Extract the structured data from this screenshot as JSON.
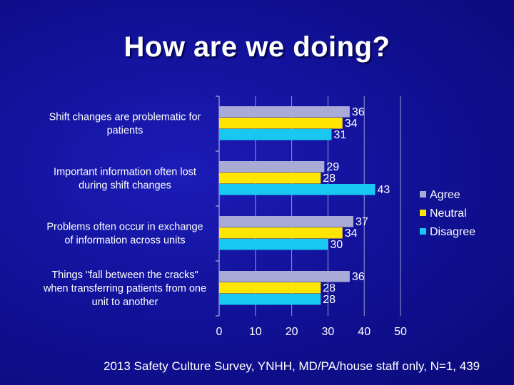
{
  "slide": {
    "title": "How are we doing?",
    "footnote": "2013 Safety Culture Survey, YNHH, MD/PA/house staff only, N=1, 439"
  },
  "chart_data": {
    "type": "bar",
    "orientation": "horizontal",
    "categories": [
      [
        "Shift changes are problematic for",
        "patients"
      ],
      [
        "Important information often lost",
        "during shift changes"
      ],
      [
        "Problems often occur in exchange",
        "of information across units"
      ],
      [
        "Things \"fall between the cracks\"",
        "when transferring patients from one",
        "unit to another"
      ]
    ],
    "series": [
      {
        "name": "Agree",
        "color": "#aaaad6",
        "values": [
          36,
          29,
          37,
          36
        ]
      },
      {
        "name": "Neutral",
        "color": "#ffe600",
        "values": [
          34,
          28,
          34,
          28
        ]
      },
      {
        "name": "Disagree",
        "color": "#18c8f0",
        "values": [
          31,
          43,
          30,
          28
        ]
      }
    ],
    "xlim": [
      0,
      50
    ],
    "xticks": [
      0,
      10,
      20,
      30,
      40,
      50
    ],
    "grid": true,
    "data_labels": true,
    "legend": "right"
  }
}
